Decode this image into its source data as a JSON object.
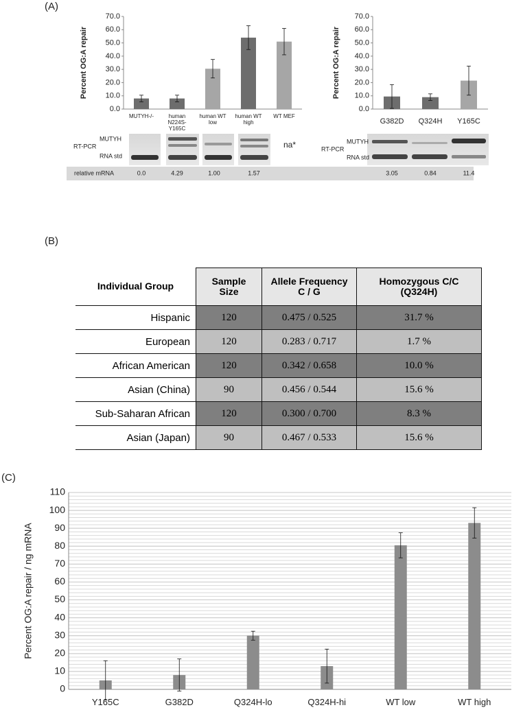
{
  "panels": {
    "a": "(A)",
    "b": "(B)",
    "c": "(C)"
  },
  "chart_data": [
    {
      "type": "bar",
      "ylabel": "Percent OG:A repair",
      "categories": [
        "MUTYH-/-",
        "human N224S-Y165C",
        "human WT low",
        "human WT high",
        "WT MEF"
      ],
      "values": [
        8,
        8,
        30.5,
        54,
        51
      ],
      "errors": [
        2.5,
        2.5,
        7,
        9,
        10
      ],
      "colors": [
        "#6d6d6d",
        "#6d6d6d",
        "#a6a6a6",
        "#6d6d6d",
        "#a6a6a6"
      ],
      "ylim": [
        0,
        70
      ],
      "yticks": [
        {
          "value": 0,
          "label": "0.0"
        },
        {
          "value": 10,
          "label": "10.0"
        },
        {
          "value": 20,
          "label": "20.0"
        },
        {
          "value": 30,
          "label": "30.0"
        },
        {
          "value": 40,
          "label": "40.0"
        },
        {
          "value": 50,
          "label": "50.0"
        },
        {
          "value": 60,
          "label": "60.0"
        },
        {
          "value": 70,
          "label": "70.0"
        }
      ],
      "grid": false
    },
    {
      "type": "bar",
      "ylabel": "Percent OG:A repair",
      "categories": [
        "G382D",
        "Q324H",
        "Y165C"
      ],
      "values": [
        9.5,
        9,
        21.5
      ],
      "errors": [
        9,
        2.5,
        11
      ],
      "colors": [
        "#6d6d6d",
        "#6d6d6d",
        "#a6a6a6"
      ],
      "ylim": [
        0,
        70
      ],
      "yticks": [
        {
          "value": 0,
          "label": "0.0"
        },
        {
          "value": 10,
          "label": "10.0"
        },
        {
          "value": 20,
          "label": "20.0"
        },
        {
          "value": 30,
          "label": "30.0"
        },
        {
          "value": 40,
          "label": "40.0"
        },
        {
          "value": 50,
          "label": "50.0"
        },
        {
          "value": 60,
          "label": "60.0"
        },
        {
          "value": 70,
          "label": "70.0"
        }
      ],
      "grid": false
    },
    {
      "type": "bar",
      "ylabel": "Percent OG:A repair / ng mRNA",
      "categories": [
        "Y165C",
        "G382D",
        "Q324H-lo",
        "Q324H-hi",
        "WT low",
        "WT high"
      ],
      "values": [
        5,
        8,
        30,
        13,
        80.5,
        93
      ],
      "errors": [
        11,
        9,
        2.5,
        9.5,
        7,
        8.5
      ],
      "colors": [
        "#8c8c8c",
        "#8c8c8c",
        "#8c8c8c",
        "#8c8c8c",
        "#8c8c8c",
        "#8c8c8c"
      ],
      "ylim": [
        0,
        110
      ],
      "yticks": [
        0,
        10,
        20,
        30,
        40,
        50,
        60,
        70,
        80,
        90,
        100,
        110
      ],
      "grid": true,
      "minor_grid_step": 2
    }
  ],
  "gels": {
    "left": {
      "mutyh": "MUTYH",
      "rt_pcr": "RT-PCR",
      "rna_std": "RNA std",
      "na": "na*"
    },
    "right": {
      "mutyh": "MUTYH",
      "rt_pcr": "RT-PCR",
      "rna_std": "RNA std"
    }
  },
  "relative_mrna": {
    "label": "relative mRNA",
    "values": [
      "0.0",
      "4.29",
      "1.00",
      "1.57",
      "3.05",
      "0.84",
      "11.4"
    ]
  },
  "table": {
    "header": [
      "Individual Group",
      "Sample Size",
      "Allele Frequency C / G",
      "Homozygous C/C (Q324H)"
    ],
    "rows": [
      [
        "Hispanic",
        "120",
        "0.475 / 0.525",
        "31.7 %"
      ],
      [
        "European",
        "120",
        "0.283 / 0.717",
        "1.7 %"
      ],
      [
        "African American",
        "120",
        "0.342 / 0.658",
        "10.0 %"
      ],
      [
        "Asian (China)",
        "90",
        "0.456 / 0.544",
        "15.6 %"
      ],
      [
        "Sub-Saharan African",
        "120",
        "0.300 / 0.700",
        "8.3 %"
      ],
      [
        "Asian (Japan)",
        "90",
        "0.467 / 0.533",
        "15.6 %"
      ]
    ]
  }
}
